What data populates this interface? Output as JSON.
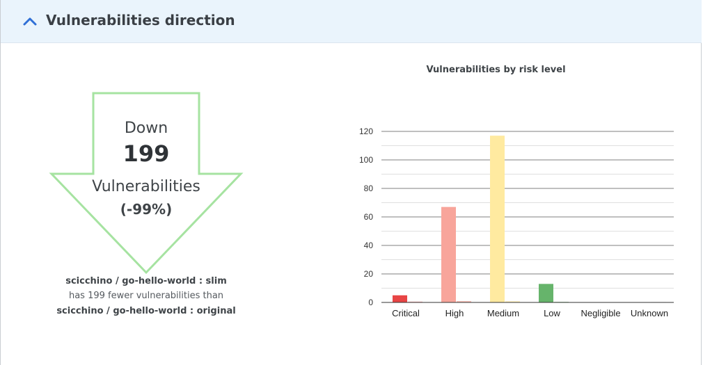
{
  "header": {
    "title": "Vulnerabilities direction",
    "toggle_icon": "chevron-up-icon"
  },
  "summary": {
    "direction": "Down",
    "count": "199",
    "unit": "Vulnerabilities",
    "percent": "(-99%)",
    "arrow_color": "#a6e3a1",
    "image_a": "scicchino / go-hello-world : slim",
    "comparison": "has 199 fewer vulnerabilities than",
    "image_b": "scicchino / go-hello-world : original"
  },
  "chart_data": {
    "type": "bar",
    "title": "Vulnerabilities by risk level",
    "categories": [
      "Critical",
      "High",
      "Medium",
      "Low",
      "Negligible",
      "Unknown"
    ],
    "series": [
      {
        "values": [
          5,
          67,
          117,
          13,
          0,
          0
        ],
        "colors": [
          "#e84545",
          "#f8a59b",
          "#ffeaa0",
          "#66b46b",
          "#cccccc",
          "#cccccc"
        ]
      },
      {
        "values": [
          0.6,
          1,
          1,
          0.5,
          0,
          0.3
        ],
        "colors": [
          "#f3b8b8",
          "#f5c0b8",
          "#fff2c6",
          "#b8ddb9",
          "#dddddd",
          "#e6e6e6"
        ]
      }
    ],
    "ylim": [
      0,
      120
    ],
    "yticks": [
      0,
      20,
      40,
      60,
      80,
      100,
      120
    ],
    "grid": true
  }
}
